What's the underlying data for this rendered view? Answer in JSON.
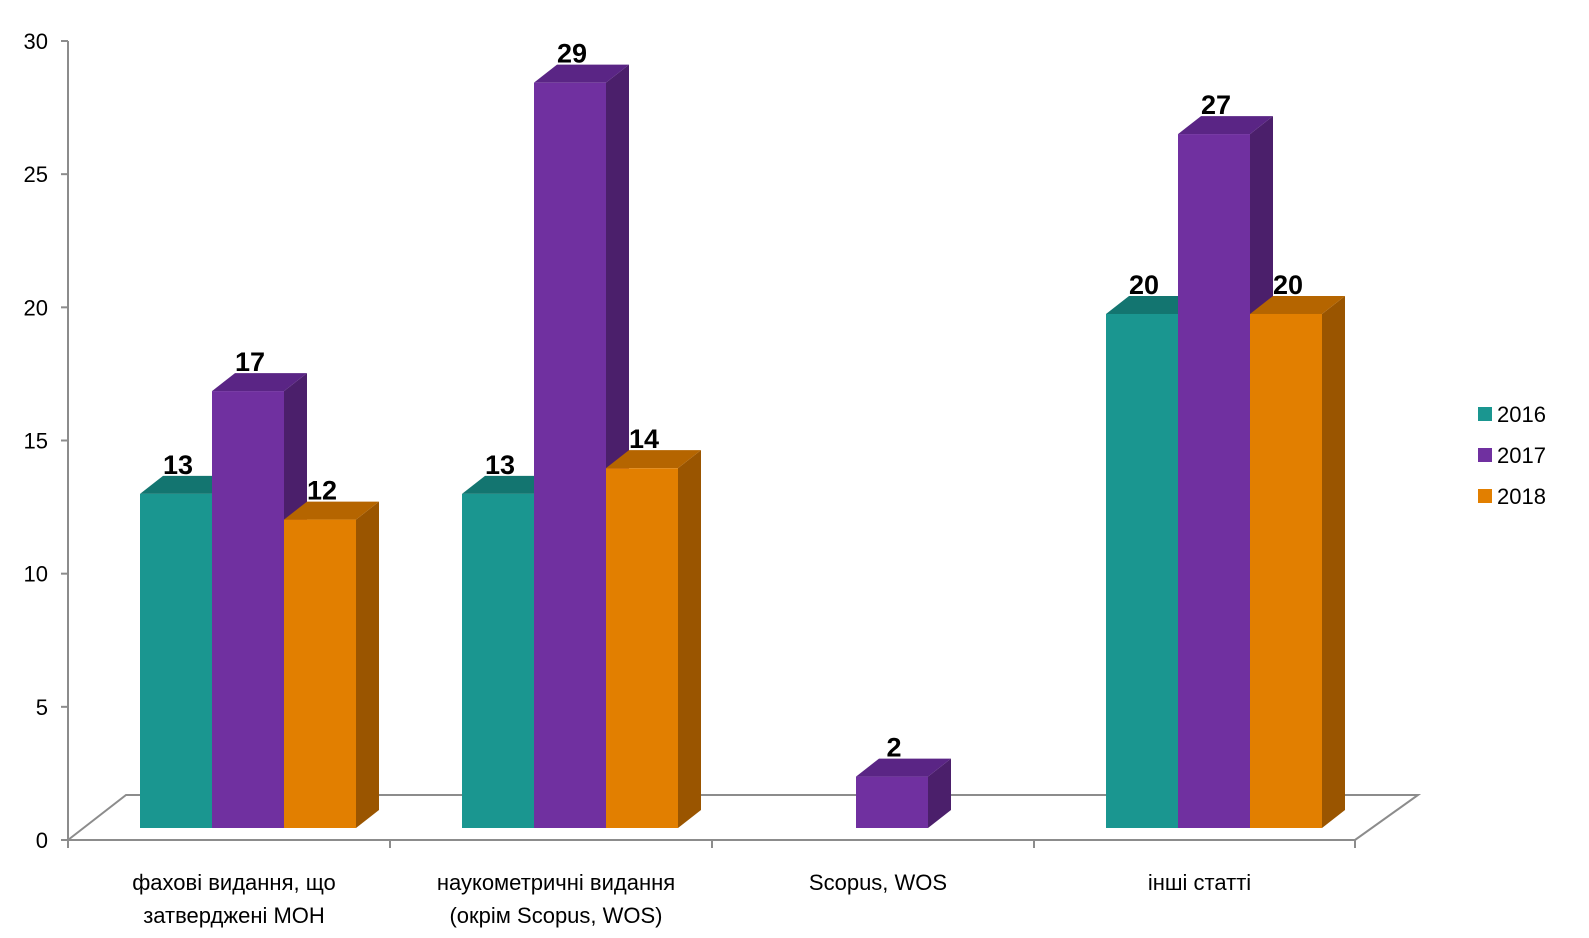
{
  "chart_data": {
    "type": "bar",
    "style": "3d-clustered-column",
    "categories": [
      [
        "фахові видання, що",
        "затверджені МОН"
      ],
      [
        "наукометричні видання",
        "(окрім Scopus, WOS)"
      ],
      [
        "Scopus, WOS"
      ],
      [
        "інші статті"
      ]
    ],
    "series": [
      {
        "name": "2016",
        "values": [
          13,
          13,
          null,
          20
        ],
        "color": "#1a9690",
        "side": "#137570",
        "top": "#137570"
      },
      {
        "name": "2017",
        "values": [
          17,
          29,
          2,
          27
        ],
        "color": "#7030a0",
        "side": "#4b1f6b",
        "top": "#5a2585"
      },
      {
        "name": "2018",
        "values": [
          12,
          14,
          null,
          20
        ],
        "color": "#e27f00",
        "side": "#9a5500",
        "top": "#b56500"
      }
    ],
    "ylim": [
      0,
      30
    ],
    "yticks": [
      "0",
      "5",
      "10",
      "15",
      "20",
      "25",
      "30"
    ],
    "legend_position": "right",
    "grid": false
  }
}
